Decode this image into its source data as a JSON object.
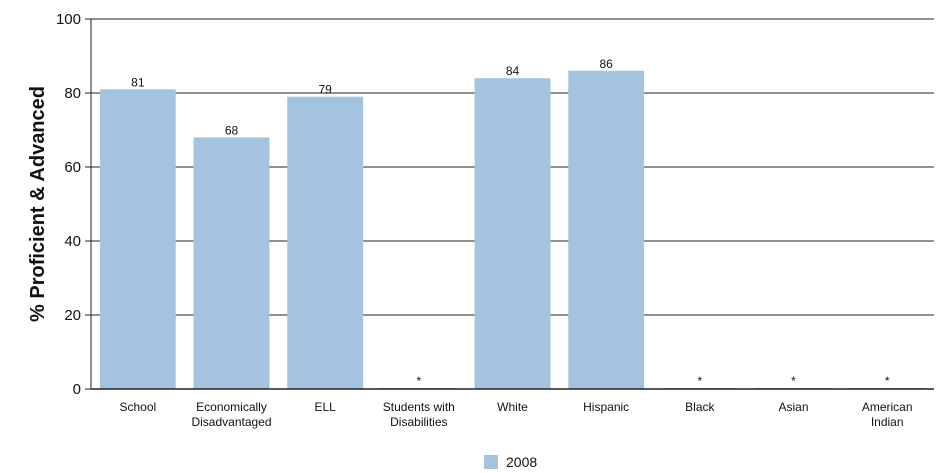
{
  "chart_data": {
    "type": "bar",
    "title": "",
    "xlabel": "",
    "ylabel": "% Proficient & Advanced",
    "ylim": [
      0,
      100
    ],
    "yticks": [
      0,
      20,
      40,
      60,
      80,
      100
    ],
    "grid": true,
    "legend_position": "bottom",
    "categories": [
      [
        "School"
      ],
      [
        "Economically",
        "Disadvantaged"
      ],
      [
        "ELL"
      ],
      [
        "Students with",
        "Disabilities"
      ],
      [
        "White"
      ],
      [
        "Hispanic"
      ],
      [
        "Black"
      ],
      [
        "Asian"
      ],
      [
        "American",
        "Indian"
      ]
    ],
    "series": [
      {
        "name": "2008",
        "color": "#a3c3df",
        "values": [
          81,
          68,
          79,
          0,
          84,
          86,
          0,
          0,
          0
        ],
        "labels": [
          "81",
          "68",
          "79",
          "*",
          "84",
          "86",
          "*",
          "*",
          "*"
        ]
      }
    ]
  }
}
